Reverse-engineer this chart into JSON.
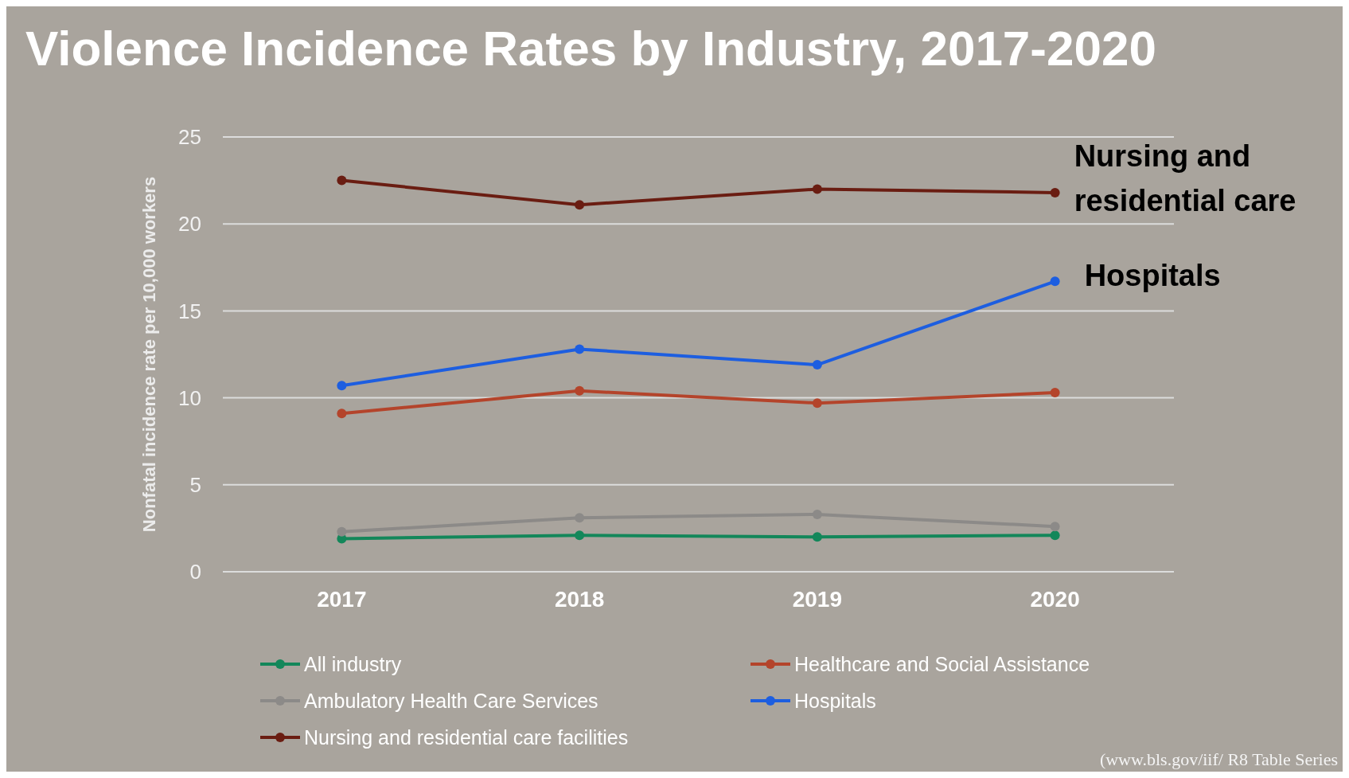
{
  "chart_data": {
    "type": "line",
    "title": "Violence Incidence Rates by Industry, 2017-2020",
    "ylabel": "Nonfatal incidence rate per 10,000 workers",
    "categories": [
      "2017",
      "2018",
      "2019",
      "2020"
    ],
    "series": [
      {
        "name": "All industry",
        "color": "#13875a",
        "values": [
          1.9,
          2.1,
          2.0,
          2.1
        ]
      },
      {
        "name": "Healthcare and Social Assistance",
        "color": "#b4442b",
        "values": [
          9.1,
          10.4,
          9.7,
          10.3
        ]
      },
      {
        "name": "Ambulatory Health Care Services",
        "color": "#8c8a88",
        "values": [
          2.3,
          3.1,
          3.3,
          2.6
        ]
      },
      {
        "name": "Hospitals",
        "color": "#1d5ee0",
        "values": [
          10.7,
          12.8,
          11.9,
          16.7
        ]
      },
      {
        "name": "Nursing and residential care facilities",
        "color": "#6a1d12",
        "values": [
          22.5,
          21.1,
          22.0,
          21.8
        ]
      }
    ],
    "ylim": [
      0,
      25
    ],
    "yticks": [
      0,
      5,
      10,
      15,
      20,
      25
    ],
    "grid": "y",
    "legend": "bottom",
    "marker": "circle",
    "line_style": "solid",
    "annotations": [
      {
        "text": "Nursing and residential care",
        "x": "2020",
        "y": 21.8
      },
      {
        "text": "Hospitals",
        "x": "2020",
        "y": 16.7
      },
      "(www.bls.gov/iif/ R8 Table Series"
    ]
  }
}
